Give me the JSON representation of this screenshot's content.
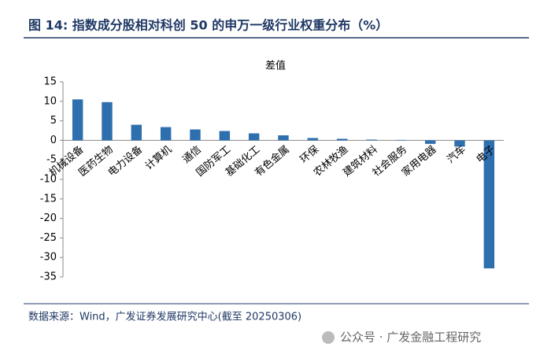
{
  "chart_data": {
    "type": "bar",
    "title": "图 14:  指数成分股相对科创 50 的申万一级行业权重分布（%）",
    "subtitle": "差值",
    "categories": [
      "机械设备",
      "医药生物",
      "电力设备",
      "计算机",
      "通信",
      "国防军工",
      "基础化工",
      "有色金属",
      "环保",
      "农林牧渔",
      "建筑材料",
      "社会服务",
      "家用电器",
      "汽车",
      "电子"
    ],
    "values": [
      10.5,
      9.8,
      4.0,
      3.4,
      2.8,
      2.4,
      1.8,
      1.3,
      0.6,
      0.4,
      0.2,
      0.1,
      -0.9,
      -1.6,
      -32.8
    ],
    "color": "#2e6fae",
    "ylim": [
      -35,
      15
    ],
    "yticks": [
      15,
      10,
      5,
      0,
      -5,
      -10,
      -15,
      -20,
      -25,
      -30,
      -35
    ],
    "grid": false,
    "source": "数据来源：Wind，广发证券发展研究中心(截至 20250306)",
    "watermark": "公众号 · 广发金融工程研究"
  }
}
